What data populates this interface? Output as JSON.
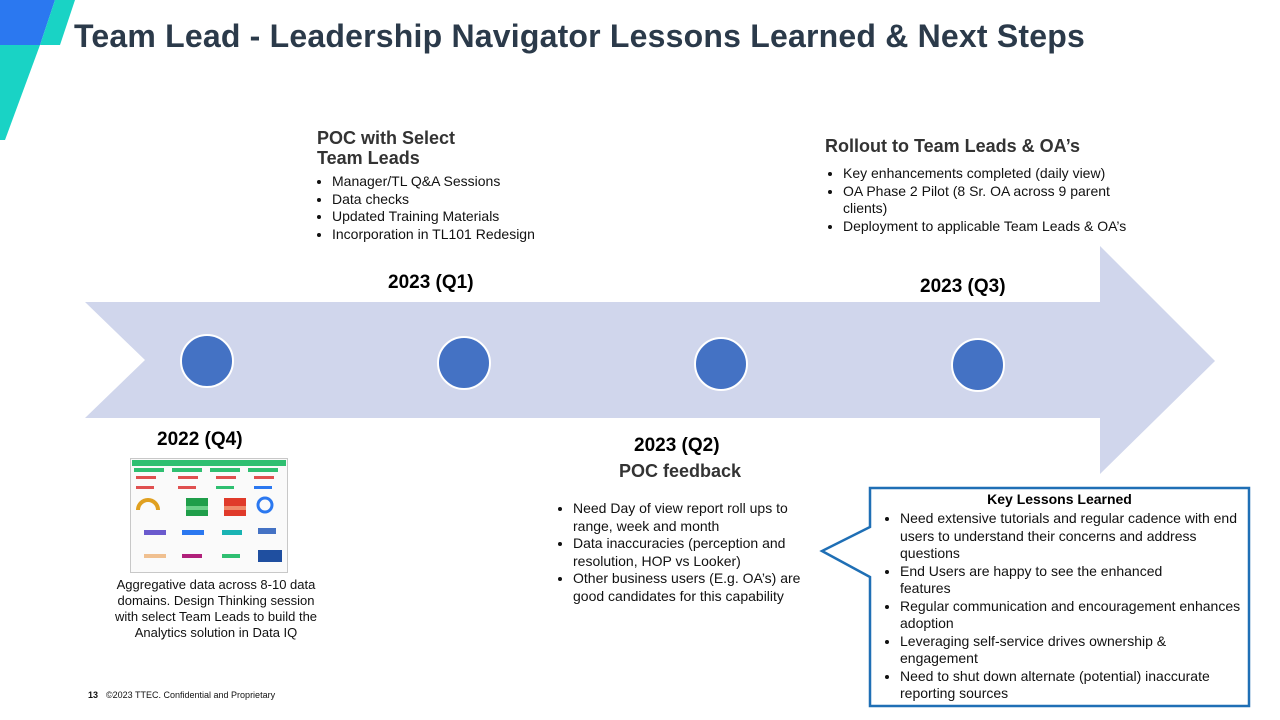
{
  "slide": {
    "title": "Team Lead - Leadership Navigator Lessons Learned & Next Steps",
    "footer": {
      "page_number": "13",
      "copyright": "©2023 TTEC. Confidential and Proprietary"
    }
  },
  "timeline": {
    "periods": {
      "q4_2022": "2022 (Q4)",
      "q1_2023": "2023 (Q1)",
      "q2_2023": "2023 (Q2)",
      "q3_2023": "2023 (Q3)"
    },
    "poc": {
      "heading_line1": "POC with Select",
      "heading_line2": "Team Leads",
      "bullets": [
        "Manager/TL Q&A Sessions",
        "Data checks",
        "Updated Training Materials",
        "Incorporation in TL101 Redesign"
      ]
    },
    "rollout": {
      "heading": "Rollout to Team Leads & OA’s",
      "bullets": [
        "Key enhancements completed (daily view)",
        "OA Phase 2 Pilot (8 Sr. OA across 9 parent clients)",
        "Deployment to applicable Team Leads & OA’s"
      ]
    },
    "poc_feedback": {
      "heading": "POC feedback",
      "bullets": [
        "Need Day of view report roll ups to range, week and month",
        "Data inaccuracies (perception and resolution, HOP vs Looker)",
        "Other business users (E.g. OA’s) are good candidates for this capability"
      ]
    },
    "q4_description": "Aggregative data across 8-10 data domains. Design Thinking session with select Team Leads to build the Analytics solution in Data IQ"
  },
  "lessons": {
    "title": "Key Lessons Learned",
    "bullets": [
      "Need extensive tutorials and regular cadence with end users to understand their concerns and address questions",
      "End Users are happy to see the enhanced features",
      "Regular communication and encouragement enhances adoption",
      "Leveraging self-service drives ownership & engagement",
      "Need to shut down alternate (potential) inaccurate reporting sources"
    ]
  },
  "colors": {
    "arrow": "#d0d6ec",
    "node": "#4472c4",
    "callout_border": "#1f6fb5",
    "title": "#2b3a4a",
    "accent_cyan": "#19d3c5",
    "accent_blue": "#2b78f0"
  }
}
